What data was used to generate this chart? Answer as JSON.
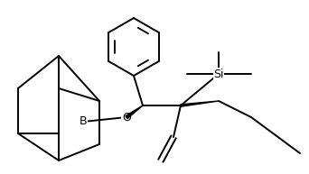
{
  "bg_color": "#ffffff",
  "lw": 1.4,
  "fig_width": 3.42,
  "fig_height": 1.93,
  "dpi": 100,
  "label_Si": "Si",
  "label_B": "B",
  "label_O": "O"
}
